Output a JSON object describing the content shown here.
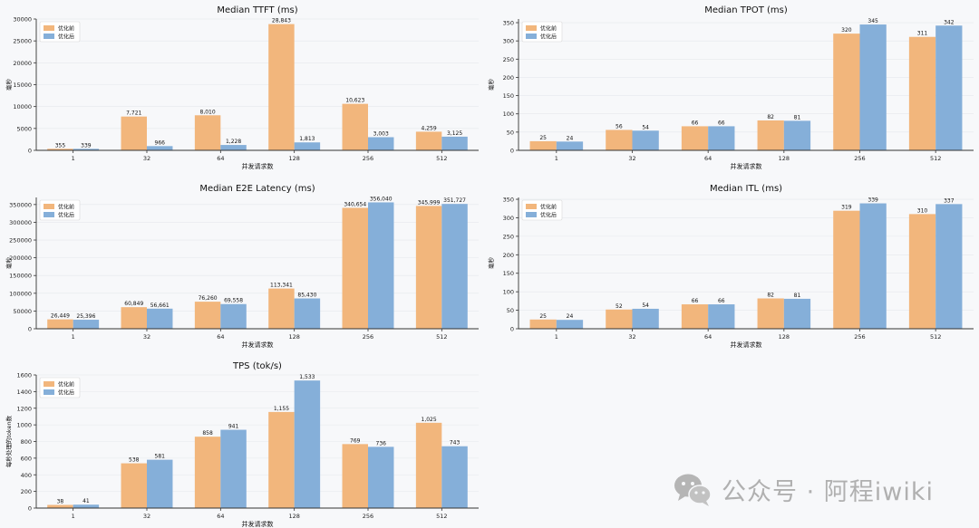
{
  "colors": {
    "before": "#f2b67c",
    "after": "#85afd9",
    "axis": "#333333",
    "grid": "#e6e8ec"
  },
  "legend": {
    "before": "优化前",
    "after": "优化后"
  },
  "watermark": {
    "text": "公众号 · 阿程iwiki"
  },
  "chart_data": [
    {
      "id": "ttft",
      "type": "bar",
      "title": "Median TTFT (ms)",
      "xlabel": "并发请求数",
      "ylabel": "毫秒",
      "categories": [
        "1",
        "32",
        "64",
        "128",
        "256",
        "512"
      ],
      "ylim": [
        0,
        30000
      ],
      "yticks": [
        0,
        5000,
        10000,
        15000,
        20000,
        25000,
        30000
      ],
      "ytick_labels": [
        "0",
        "5000",
        "10000",
        "15000",
        "20000",
        "25000",
        "30000"
      ],
      "series": [
        {
          "name": "优化前",
          "key": "before",
          "values": [
            355,
            7721,
            8010,
            28843,
            10623,
            4259
          ],
          "labels": [
            "355",
            "7,721",
            "8,010",
            "28,843",
            "10,623",
            "4,259"
          ]
        },
        {
          "name": "优化后",
          "key": "after",
          "values": [
            339,
            966,
            1228,
            1813,
            3003,
            3125
          ],
          "labels": [
            "339",
            "966",
            "1,228",
            "1,813",
            "3,003",
            "3,125"
          ]
        }
      ],
      "legend_position": "top-left"
    },
    {
      "id": "tpot",
      "type": "bar",
      "title": "Median TPOT (ms)",
      "xlabel": "并发请求数",
      "ylabel": "毫秒",
      "categories": [
        "1",
        "32",
        "64",
        "128",
        "256",
        "512"
      ],
      "ylim": [
        0,
        360
      ],
      "yticks": [
        0,
        50,
        100,
        150,
        200,
        250,
        300,
        350
      ],
      "ytick_labels": [
        "0",
        "50",
        "100",
        "150",
        "200",
        "250",
        "300",
        "350"
      ],
      "series": [
        {
          "name": "优化前",
          "key": "before",
          "values": [
            25,
            56,
            66,
            82,
            320,
            311
          ],
          "labels": [
            "25",
            "56",
            "66",
            "82",
            "320",
            "311"
          ]
        },
        {
          "name": "优化后",
          "key": "after",
          "values": [
            24,
            54,
            66,
            81,
            345,
            342
          ],
          "labels": [
            "24",
            "54",
            "66",
            "81",
            "345",
            "342"
          ]
        }
      ],
      "legend_position": "top-left"
    },
    {
      "id": "e2e",
      "type": "bar",
      "title": "Median E2E Latency (ms)",
      "xlabel": "并发请求数",
      "ylabel": "毫秒",
      "categories": [
        "1",
        "32",
        "64",
        "128",
        "256",
        "512"
      ],
      "ylim": [
        0,
        370000
      ],
      "yticks": [
        0,
        50000,
        100000,
        150000,
        200000,
        250000,
        300000,
        350000
      ],
      "ytick_labels": [
        "0",
        "50000",
        "100000",
        "150000",
        "200000",
        "250000",
        "300000",
        "350000"
      ],
      "series": [
        {
          "name": "优化前",
          "key": "before",
          "values": [
            26449,
            60849,
            76260,
            113341,
            340654,
            345999
          ],
          "labels": [
            "26,449",
            "60,849",
            "76,260",
            "113,341",
            "340,654",
            "345,999"
          ]
        },
        {
          "name": "优化后",
          "key": "after",
          "values": [
            25396,
            56661,
            69558,
            85430,
            356040,
            351727
          ],
          "labels": [
            "25,396",
            "56,661",
            "69,558",
            "85,430",
            "356,040",
            "351,727"
          ]
        }
      ],
      "legend_position": "top-left"
    },
    {
      "id": "itl",
      "type": "bar",
      "title": "Median ITL (ms)",
      "xlabel": "并发请求数",
      "ylabel": "毫秒",
      "categories": [
        "1",
        "32",
        "64",
        "128",
        "256",
        "512"
      ],
      "ylim": [
        0,
        355
      ],
      "yticks": [
        0,
        50,
        100,
        150,
        200,
        250,
        300,
        350
      ],
      "ytick_labels": [
        "0",
        "50",
        "100",
        "150",
        "200",
        "250",
        "300",
        "350"
      ],
      "series": [
        {
          "name": "优化前",
          "key": "before",
          "values": [
            25,
            52,
            66,
            82,
            319,
            310
          ],
          "labels": [
            "25",
            "52",
            "66",
            "82",
            "319",
            "310"
          ]
        },
        {
          "name": "优化后",
          "key": "after",
          "values": [
            24,
            54,
            66,
            81,
            339,
            337
          ],
          "labels": [
            "24",
            "54",
            "66",
            "81",
            "339",
            "337"
          ]
        }
      ],
      "legend_position": "top-left"
    },
    {
      "id": "tps",
      "type": "bar",
      "title": "TPS (tok/s)",
      "xlabel": "并发请求数",
      "ylabel": "每秒处理的token数",
      "categories": [
        "1",
        "32",
        "64",
        "128",
        "256",
        "512"
      ],
      "ylim": [
        0,
        1600
      ],
      "yticks": [
        0,
        200,
        400,
        600,
        800,
        1000,
        1200,
        1400,
        1600
      ],
      "ytick_labels": [
        "0",
        "200",
        "400",
        "600",
        "800",
        "1000",
        "1200",
        "1400",
        "1600"
      ],
      "series": [
        {
          "name": "优化前",
          "key": "before",
          "values": [
            38,
            538,
            858,
            1155,
            769,
            1025
          ],
          "labels": [
            "38",
            "538",
            "858",
            "1,155",
            "769",
            "1,025"
          ]
        },
        {
          "name": "优化后",
          "key": "after",
          "values": [
            41,
            581,
            941,
            1533,
            736,
            743
          ],
          "labels": [
            "41",
            "581",
            "941",
            "1,533",
            "736",
            "743"
          ]
        }
      ],
      "legend_position": "top-left"
    }
  ]
}
